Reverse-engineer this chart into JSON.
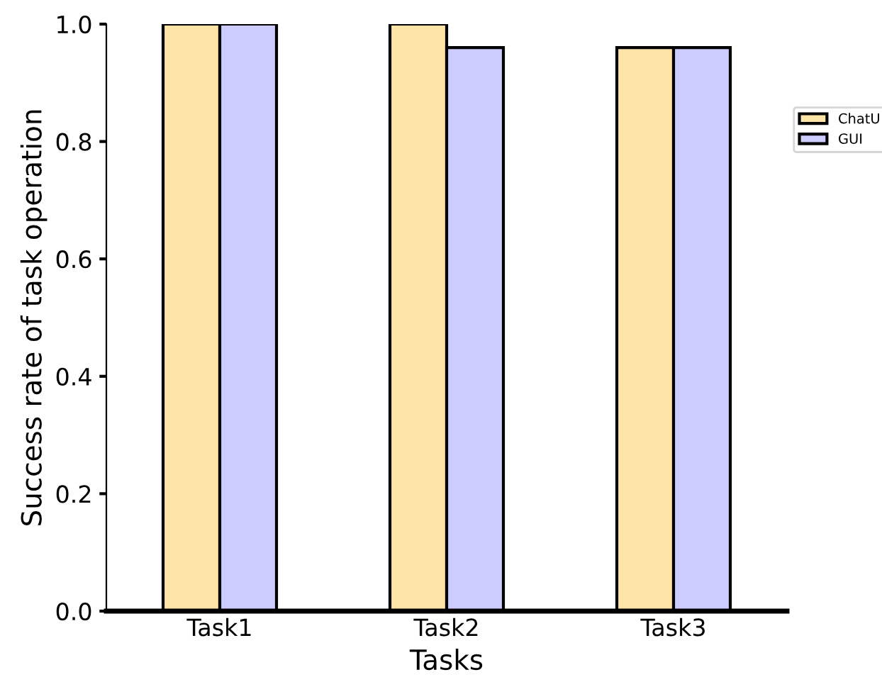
{
  "chart_data": {
    "type": "bar",
    "xlabel": "Tasks",
    "ylabel": "Success rate of task operation",
    "categories": [
      "Task1",
      "Task2",
      "Task3"
    ],
    "series": [
      {
        "name": "ChatU",
        "color": "#ffe4a8",
        "values": [
          1.0,
          1.0,
          0.96
        ]
      },
      {
        "name": "GUI",
        "color": "#ccccff",
        "values": [
          1.0,
          0.96,
          0.96
        ]
      }
    ],
    "ylim": [
      0,
      1.0
    ],
    "yticks": [
      {
        "value": 0,
        "label": "0.0"
      },
      0.2,
      0.4,
      0.6,
      0.8,
      {
        "value": 1,
        "label": "1.0"
      }
    ],
    "grid": false,
    "legend": "right"
  }
}
